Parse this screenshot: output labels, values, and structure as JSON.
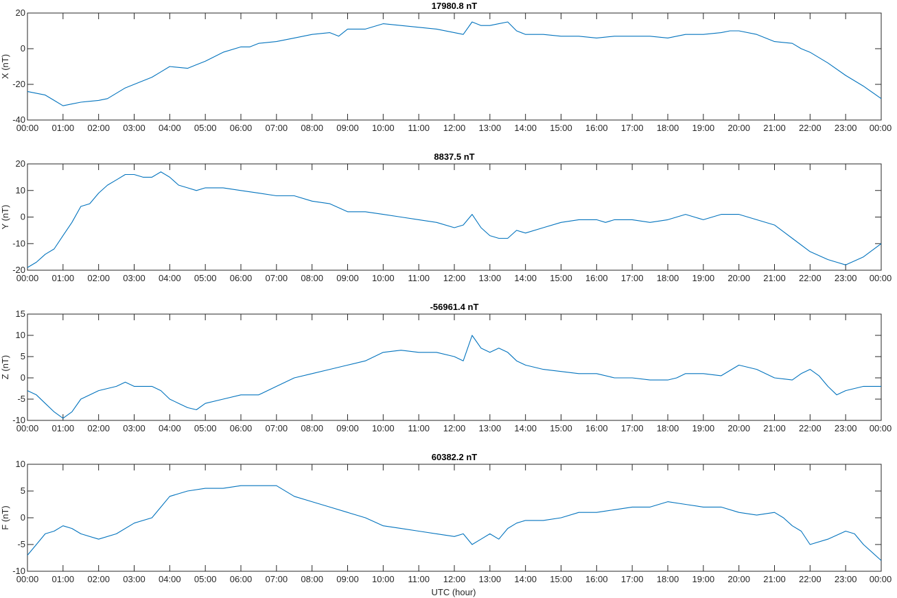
{
  "figure": {
    "xlabel": "UTC (hour)",
    "line_color": "#0072BD",
    "axes_color": "#262626"
  },
  "chart_data": [
    {
      "type": "line",
      "title": "17980.8 nT",
      "xlabel": "",
      "ylabel": "X (nT)",
      "xlim": [
        0,
        24
      ],
      "ylim": [
        -40,
        20
      ],
      "yticks": [
        -40,
        -20,
        0,
        20
      ],
      "xtick_labels": [
        "00:00",
        "01:00",
        "02:00",
        "03:00",
        "04:00",
        "05:00",
        "06:00",
        "07:00",
        "08:00",
        "09:00",
        "10:00",
        "11:00",
        "12:00",
        "13:00",
        "14:00",
        "15:00",
        "16:00",
        "17:00",
        "18:00",
        "19:00",
        "20:00",
        "21:00",
        "22:00",
        "23:00",
        "00:00"
      ],
      "grid": false,
      "series": [
        {
          "x": [
            0,
            0.5,
            0.75,
            1.0,
            1.25,
            1.5,
            2.0,
            2.25,
            2.75,
            3.0,
            3.5,
            3.75,
            4.0,
            4.5,
            4.75,
            5.0,
            5.5,
            6.0,
            6.25,
            6.5,
            7.0,
            7.5,
            8.0,
            8.5,
            8.75,
            9.0,
            9.5,
            10.0,
            10.5,
            11.0,
            11.5,
            12.0,
            12.25,
            12.5,
            12.75,
            13.0,
            13.25,
            13.5,
            13.75,
            14.0,
            14.5,
            15.0,
            15.5,
            16.0,
            16.5,
            17.0,
            17.5,
            18.0,
            18.5,
            19.0,
            19.5,
            19.75,
            20.0,
            20.5,
            21.0,
            21.5,
            21.75,
            22.0,
            22.5,
            23.0,
            23.5,
            24.0
          ],
          "values": [
            -24,
            -26,
            -29,
            -32,
            -31,
            -30,
            -29,
            -28,
            -22,
            -20,
            -16,
            -13,
            -10,
            -11,
            -9,
            -7,
            -2,
            1,
            1,
            3,
            4,
            6,
            8,
            9,
            7,
            11,
            11,
            14,
            13,
            12,
            11,
            9,
            8,
            15,
            13,
            13,
            14,
            15,
            10,
            8,
            8,
            7,
            7,
            6,
            7,
            7,
            7,
            6,
            8,
            8,
            9,
            10,
            10,
            8,
            4,
            3,
            0,
            -2,
            -8,
            -15,
            -21,
            -28
          ]
        }
      ]
    },
    {
      "type": "line",
      "title": "8837.5 nT",
      "xlabel": "",
      "ylabel": "Y (nT)",
      "xlim": [
        0,
        24
      ],
      "ylim": [
        -20,
        20
      ],
      "yticks": [
        -20,
        -10,
        0,
        10,
        20
      ],
      "xtick_labels": [
        "00:00",
        "01:00",
        "02:00",
        "03:00",
        "04:00",
        "05:00",
        "06:00",
        "07:00",
        "08:00",
        "09:00",
        "10:00",
        "11:00",
        "12:00",
        "13:00",
        "14:00",
        "15:00",
        "16:00",
        "17:00",
        "18:00",
        "19:00",
        "20:00",
        "21:00",
        "22:00",
        "23:00",
        "00:00"
      ],
      "grid": false,
      "series": [
        {
          "x": [
            0,
            0.25,
            0.5,
            0.75,
            1.0,
            1.25,
            1.5,
            1.75,
            2.0,
            2.25,
            2.5,
            2.75,
            3.0,
            3.25,
            3.5,
            3.75,
            4.0,
            4.25,
            4.5,
            4.75,
            5.0,
            5.5,
            6.0,
            6.5,
            7.0,
            7.5,
            8.0,
            8.5,
            9.0,
            9.5,
            10.0,
            10.5,
            11.0,
            11.5,
            12.0,
            12.25,
            12.5,
            12.75,
            13.0,
            13.25,
            13.5,
            13.75,
            14.0,
            14.5,
            15.0,
            15.5,
            16.0,
            16.25,
            16.5,
            17.0,
            17.5,
            18.0,
            18.25,
            18.5,
            19.0,
            19.5,
            20.0,
            20.5,
            21.0,
            21.5,
            22.0,
            22.5,
            22.75,
            23.0,
            23.5,
            24.0
          ],
          "values": [
            -19,
            -17,
            -14,
            -12,
            -7,
            -2,
            4,
            5,
            9,
            12,
            14,
            16,
            16,
            15,
            15,
            17,
            15,
            12,
            11,
            10,
            11,
            11,
            10,
            9,
            8,
            8,
            6,
            5,
            2,
            2,
            1,
            0,
            -1,
            -2,
            -4,
            -3,
            1,
            -4,
            -7,
            -8,
            -8,
            -5,
            -6,
            -4,
            -2,
            -1,
            -1,
            -2,
            -1,
            -1,
            -2,
            -1,
            0,
            1,
            -1,
            1,
            1,
            -1,
            -3,
            -8,
            -13,
            -16,
            -17,
            -18,
            -15,
            -10
          ]
        }
      ]
    },
    {
      "type": "line",
      "title": "-56961.4 nT",
      "xlabel": "",
      "ylabel": "Z (nT)",
      "xlim": [
        0,
        24
      ],
      "ylim": [
        -10,
        15
      ],
      "yticks": [
        -10,
        -5,
        0,
        5,
        10,
        15
      ],
      "xtick_labels": [
        "00:00",
        "01:00",
        "02:00",
        "03:00",
        "04:00",
        "05:00",
        "06:00",
        "07:00",
        "08:00",
        "09:00",
        "10:00",
        "11:00",
        "12:00",
        "13:00",
        "14:00",
        "15:00",
        "16:00",
        "17:00",
        "18:00",
        "19:00",
        "20:00",
        "21:00",
        "22:00",
        "23:00",
        "00:00"
      ],
      "grid": false,
      "series": [
        {
          "x": [
            0,
            0.25,
            0.5,
            0.75,
            1.0,
            1.25,
            1.5,
            2.0,
            2.5,
            2.75,
            3.0,
            3.5,
            3.75,
            4.0,
            4.25,
            4.5,
            4.75,
            5.0,
            5.5,
            6.0,
            6.5,
            7.0,
            7.5,
            8.0,
            8.5,
            9.0,
            9.5,
            10.0,
            10.5,
            11.0,
            11.5,
            12.0,
            12.25,
            12.5,
            12.75,
            13.0,
            13.25,
            13.5,
            13.75,
            14.0,
            14.5,
            15.0,
            15.5,
            16.0,
            16.5,
            17.0,
            17.5,
            18.0,
            18.25,
            18.5,
            19.0,
            19.5,
            20.0,
            20.5,
            21.0,
            21.5,
            21.75,
            22.0,
            22.25,
            22.5,
            22.75,
            23.0,
            23.5,
            24.0
          ],
          "values": [
            -3,
            -4,
            -6,
            -8,
            -9.5,
            -8,
            -5,
            -3,
            -2,
            -1,
            -2,
            -2,
            -3,
            -5,
            -6,
            -7,
            -7.5,
            -6,
            -5,
            -4,
            -4,
            -2,
            0,
            1,
            2,
            3,
            4,
            6,
            6.5,
            6,
            6,
            5,
            4,
            10,
            7,
            6,
            7,
            6,
            4,
            3,
            2,
            1.5,
            1,
            1,
            0,
            0,
            -0.5,
            -0.5,
            0,
            1,
            1,
            0.5,
            3,
            2,
            0,
            -0.5,
            1,
            2,
            0.5,
            -2,
            -4,
            -3,
            -2,
            -2
          ]
        }
      ]
    },
    {
      "type": "line",
      "title": "60382.2 nT",
      "xlabel": "UTC (hour)",
      "ylabel": "F (nT)",
      "xlim": [
        0,
        24
      ],
      "ylim": [
        -10,
        10
      ],
      "yticks": [
        -10,
        -5,
        0,
        5,
        10
      ],
      "xtick_labels": [
        "00:00",
        "01:00",
        "02:00",
        "03:00",
        "04:00",
        "05:00",
        "06:00",
        "07:00",
        "08:00",
        "09:00",
        "10:00",
        "11:00",
        "12:00",
        "13:00",
        "14:00",
        "15:00",
        "16:00",
        "17:00",
        "18:00",
        "19:00",
        "20:00",
        "21:00",
        "22:00",
        "23:00",
        "00:00"
      ],
      "grid": false,
      "series": [
        {
          "x": [
            0,
            0.25,
            0.5,
            0.75,
            1.0,
            1.25,
            1.5,
            2.0,
            2.5,
            3.0,
            3.5,
            3.75,
            4.0,
            4.25,
            4.5,
            5.0,
            5.5,
            6.0,
            6.5,
            7.0,
            7.5,
            8.0,
            8.5,
            9.0,
            9.5,
            10.0,
            10.5,
            11.0,
            11.5,
            12.0,
            12.25,
            12.5,
            12.75,
            13.0,
            13.25,
            13.5,
            13.75,
            14.0,
            14.5,
            15.0,
            15.5,
            16.0,
            16.5,
            17.0,
            17.5,
            18.0,
            18.5,
            19.0,
            19.5,
            20.0,
            20.5,
            21.0,
            21.25,
            21.5,
            21.75,
            22.0,
            22.5,
            23.0,
            23.25,
            23.5,
            24.0
          ],
          "values": [
            -7,
            -5,
            -3,
            -2.5,
            -1.5,
            -2,
            -3,
            -4,
            -3,
            -1,
            0,
            2,
            4,
            4.5,
            5,
            5.5,
            5.5,
            6,
            6,
            6,
            4,
            3,
            2,
            1,
            0,
            -1.5,
            -2,
            -2.5,
            -3,
            -3.5,
            -3,
            -5,
            -4,
            -3,
            -4,
            -2,
            -1,
            -0.5,
            -0.5,
            0,
            1,
            1,
            1.5,
            2,
            2,
            3,
            2.5,
            2,
            2,
            1,
            0.5,
            1,
            0,
            -1.5,
            -2.5,
            -5,
            -4,
            -2.5,
            -3,
            -5,
            -8
          ]
        }
      ]
    }
  ]
}
